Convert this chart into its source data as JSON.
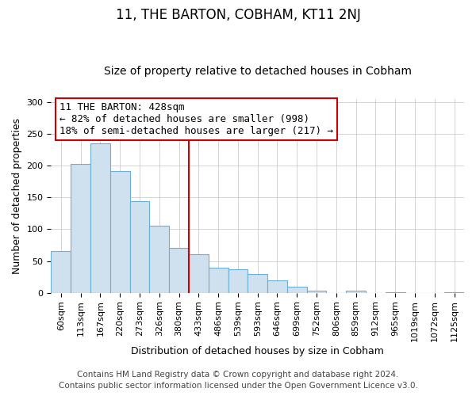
{
  "title": "11, THE BARTON, COBHAM, KT11 2NJ",
  "subtitle": "Size of property relative to detached houses in Cobham",
  "xlabel": "Distribution of detached houses by size in Cobham",
  "ylabel": "Number of detached properties",
  "bin_labels": [
    "60sqm",
    "113sqm",
    "167sqm",
    "220sqm",
    "273sqm",
    "326sqm",
    "380sqm",
    "433sqm",
    "486sqm",
    "539sqm",
    "593sqm",
    "646sqm",
    "699sqm",
    "752sqm",
    "806sqm",
    "859sqm",
    "912sqm",
    "965sqm",
    "1019sqm",
    "1072sqm",
    "1125sqm"
  ],
  "bar_heights": [
    65,
    202,
    235,
    191,
    144,
    106,
    70,
    61,
    39,
    37,
    30,
    20,
    10,
    4,
    0,
    4,
    0,
    1,
    0,
    0,
    1
  ],
  "bar_color": "#cfe0ef",
  "bar_edge_color": "#6baed6",
  "vline_index": 7,
  "vline_color": "#cc0000",
  "annotation_title": "11 THE BARTON: 428sqm",
  "annotation_line1": "← 82% of detached houses are smaller (998)",
  "annotation_line2": "18% of semi-detached houses are larger (217) →",
  "annotation_box_color": "#ffffff",
  "annotation_box_edge": "#cc0000",
  "ylim": [
    0,
    305
  ],
  "yticks": [
    0,
    50,
    100,
    150,
    200,
    250,
    300
  ],
  "footer1": "Contains HM Land Registry data © Crown copyright and database right 2024.",
  "footer2": "Contains public sector information licensed under the Open Government Licence v3.0.",
  "title_fontsize": 12,
  "subtitle_fontsize": 10,
  "axis_label_fontsize": 9,
  "tick_fontsize": 8,
  "annotation_fontsize": 9,
  "footer_fontsize": 7.5
}
